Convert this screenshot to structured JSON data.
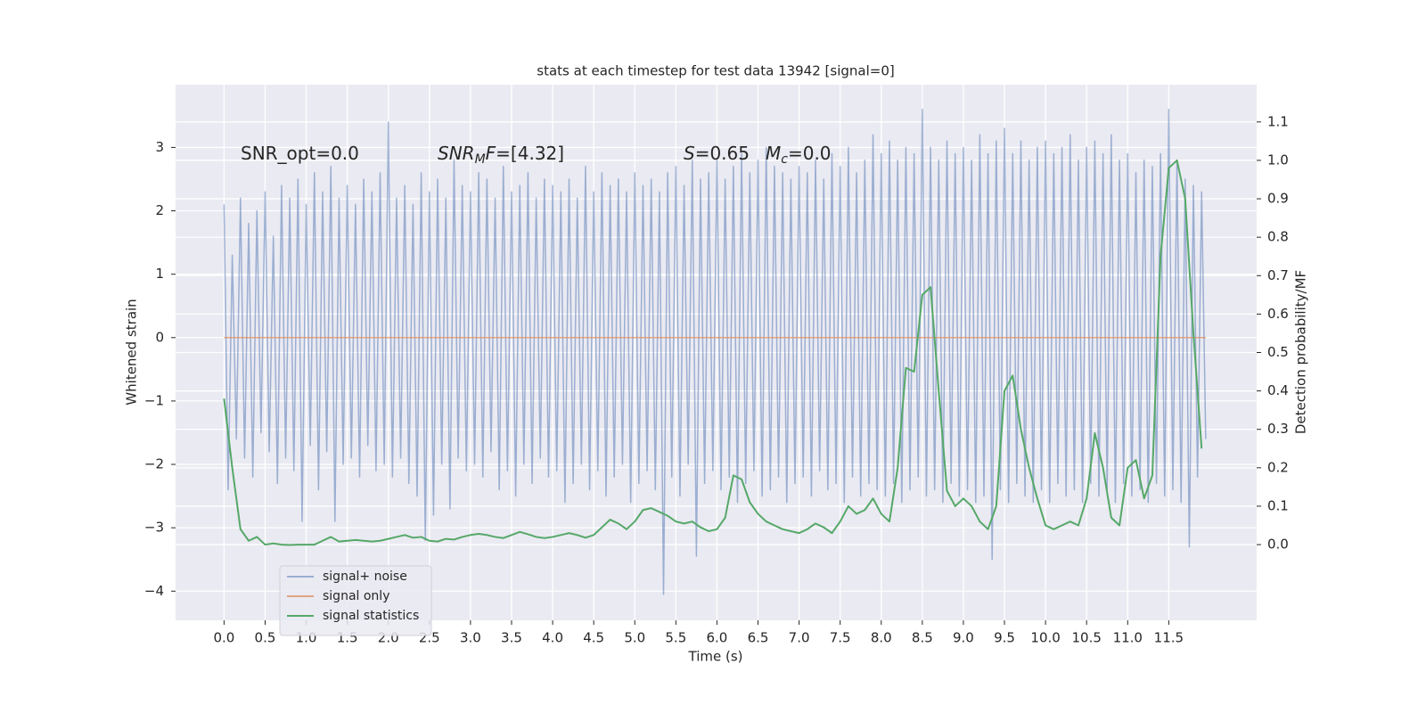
{
  "chart_data": {
    "type": "line",
    "title": "stats at each timestep for test data 13942 [signal=0]",
    "x_label": "Time (s)",
    "y_label": "Whitened strain",
    "y2_label": "Detection probability/MF",
    "xlim": [
      -0.59,
      12.57
    ],
    "ylim": [
      -4.46,
      3.99
    ],
    "y2lim": [
      -0.197,
      1.197
    ],
    "xticks": [
      {
        "value": 0,
        "label": "0.0"
      },
      0.5,
      {
        "value": 1,
        "label": "1.0"
      },
      1.5,
      {
        "value": 2,
        "label": "2.0"
      },
      2.5,
      {
        "value": 3,
        "label": "3.0"
      },
      3.5,
      {
        "value": 4,
        "label": "4.0"
      },
      4.5,
      {
        "value": 5,
        "label": "5.0"
      },
      5.5,
      {
        "value": 6,
        "label": "6.0"
      },
      6.5,
      {
        "value": 7,
        "label": "7.0"
      },
      7.5,
      {
        "value": 8,
        "label": "8.0"
      },
      8.5,
      {
        "value": 9,
        "label": "9.0"
      },
      9.5,
      {
        "value": 10,
        "label": "10.0"
      },
      10.5,
      {
        "value": 11,
        "label": "11.0"
      },
      11.5
    ],
    "yticks": [
      {
        "value": -4,
        "label": "−4"
      },
      {
        "value": -3,
        "label": "−3"
      },
      {
        "value": -2,
        "label": "−2"
      },
      {
        "value": -1,
        "label": "−1"
      },
      0,
      1,
      2,
      3
    ],
    "y2ticks": [
      {
        "value": 0,
        "label": "0.0"
      },
      0.1,
      0.2,
      0.3,
      0.4,
      0.5,
      0.6,
      0.7,
      0.8,
      0.9,
      {
        "value": 1,
        "label": "1.0"
      },
      1.1
    ],
    "grid": true,
    "legend": "lower left",
    "annotations": [
      {
        "parts": [
          {
            "text": "SNR_opt=0.0"
          }
        ]
      },
      {
        "parts": [
          {
            "text": "SNR",
            "italic": true
          },
          {
            "text": "M",
            "italic": true,
            "sub": true
          },
          {
            "text": "F",
            "italic": true
          },
          {
            "text": "=[4.32]"
          }
        ]
      },
      {
        "parts": [
          {
            "text": "S",
            "italic": true
          },
          {
            "text": "=0.65"
          }
        ]
      },
      {
        "parts": [
          {
            "text": "M",
            "italic": true
          },
          {
            "text": "c",
            "italic": true,
            "sub": true
          },
          {
            "text": "=0.0"
          }
        ]
      }
    ],
    "series": [
      {
        "name": "signal+ noise",
        "color": "#4c72b0",
        "opacity": 0.5,
        "x": [
          0,
          0.05,
          0.1,
          0.15,
          0.2,
          0.25,
          0.3,
          0.35,
          0.4,
          0.45,
          0.5,
          0.55,
          0.6,
          0.65,
          0.7,
          0.75,
          0.8,
          0.85,
          0.9,
          0.95,
          1,
          1.05,
          1.1,
          1.15,
          1.2,
          1.25,
          1.3,
          1.35,
          1.4,
          1.45,
          1.5,
          1.55,
          1.6,
          1.65,
          1.7,
          1.75,
          1.8,
          1.85,
          1.9,
          1.95,
          2,
          2.05,
          2.1,
          2.15,
          2.2,
          2.25,
          2.3,
          2.35,
          2.4,
          2.45,
          2.5,
          2.55,
          2.6,
          2.65,
          2.7,
          2.75,
          2.8,
          2.85,
          2.9,
          2.95,
          3,
          3.05,
          3.1,
          3.15,
          3.2,
          3.25,
          3.3,
          3.35,
          3.4,
          3.45,
          3.5,
          3.55,
          3.6,
          3.65,
          3.7,
          3.75,
          3.8,
          3.85,
          3.9,
          3.95,
          4,
          4.05,
          4.1,
          4.15,
          4.2,
          4.25,
          4.3,
          4.35,
          4.4,
          4.45,
          4.5,
          4.55,
          4.6,
          4.65,
          4.7,
          4.75,
          4.8,
          4.85,
          4.9,
          4.95,
          5,
          5.05,
          5.1,
          5.15,
          5.2,
          5.25,
          5.3,
          5.35,
          5.4,
          5.45,
          5.5,
          5.55,
          5.6,
          5.65,
          5.7,
          5.75,
          5.8,
          5.85,
          5.9,
          5.95,
          6,
          6.05,
          6.1,
          6.15,
          6.2,
          6.25,
          6.3,
          6.35,
          6.4,
          6.45,
          6.5,
          6.55,
          6.6,
          6.65,
          6.7,
          6.75,
          6.8,
          6.85,
          6.9,
          6.95,
          7,
          7.05,
          7.1,
          7.15,
          7.2,
          7.25,
          7.3,
          7.35,
          7.4,
          7.45,
          7.5,
          7.55,
          7.6,
          7.65,
          7.7,
          7.75,
          7.8,
          7.85,
          7.9,
          7.95,
          8,
          8.05,
          8.1,
          8.15,
          8.2,
          8.25,
          8.3,
          8.35,
          8.4,
          8.45,
          8.5,
          8.55,
          8.6,
          8.65,
          8.7,
          8.75,
          8.8,
          8.85,
          8.9,
          8.95,
          9,
          9.05,
          9.1,
          9.15,
          9.2,
          9.25,
          9.3,
          9.35,
          9.4,
          9.45,
          9.5,
          9.55,
          9.6,
          9.65,
          9.7,
          9.75,
          9.8,
          9.85,
          9.9,
          9.95,
          10,
          10.05,
          10.1,
          10.15,
          10.2,
          10.25,
          10.3,
          10.35,
          10.4,
          10.45,
          10.5,
          10.55,
          10.6,
          10.65,
          10.7,
          10.75,
          10.8,
          10.85,
          10.9,
          10.95,
          11,
          11.05,
          11.1,
          11.15,
          11.2,
          11.25,
          11.3,
          11.35,
          11.4,
          11.45,
          11.5,
          11.55,
          11.6,
          11.65,
          11.7,
          11.75,
          11.8,
          11.85,
          11.9,
          11.95
        ],
        "values": [
          2.1,
          -2.4,
          1.3,
          -1.6,
          2.2,
          -1.9,
          1.8,
          -2.2,
          2.0,
          -1.5,
          2.3,
          -1.8,
          1.6,
          -2.3,
          2.4,
          -1.9,
          2.2,
          -2.1,
          2.5,
          -2.9,
          2.1,
          -1.7,
          2.6,
          -2.4,
          2.3,
          -1.8,
          2.7,
          -2.9,
          2.2,
          -2.0,
          2.4,
          -1.9,
          2.1,
          -2.2,
          2.5,
          -1.7,
          2.3,
          -2.1,
          2.6,
          -2.0,
          3.4,
          -2.2,
          2.2,
          -1.9,
          2.4,
          -2.3,
          2.1,
          -2.5,
          2.6,
          -3.2,
          2.3,
          -2.8,
          2.5,
          -2.0,
          2.2,
          -2.7,
          2.8,
          -1.9,
          2.4,
          -2.1,
          2.3,
          -2.0,
          2.6,
          -2.2,
          2.5,
          -1.8,
          2.2,
          -2.4,
          2.7,
          -2.1,
          2.3,
          -2.5,
          2.4,
          -2.0,
          2.6,
          -2.3,
          2.2,
          -1.9,
          2.5,
          -2.2,
          2.4,
          -2.1,
          2.3,
          -2.6,
          2.5,
          -2.3,
          2.2,
          -2.0,
          2.7,
          -2.4,
          2.3,
          -2.1,
          2.6,
          -2.5,
          2.4,
          -2.2,
          2.5,
          -2.0,
          2.3,
          -2.6,
          2.6,
          -2.3,
          2.4,
          -2.1,
          2.5,
          -2.4,
          2.3,
          -4.05,
          2.6,
          -2.2,
          2.7,
          -2.5,
          2.4,
          -2.0,
          2.8,
          -3.45,
          2.5,
          -2.3,
          2.6,
          -2.1,
          2.8,
          -2.4,
          2.5,
          -2.2,
          2.7,
          -2.6,
          2.9,
          -2.3,
          2.6,
          -2.1,
          2.8,
          -2.5,
          3.0,
          -2.4,
          2.7,
          -2.2,
          2.6,
          -2.6,
          2.5,
          -2.3,
          2.7,
          -2.2,
          2.6,
          -2.5,
          2.8,
          -2.1,
          2.5,
          -2.4,
          2.9,
          -2.3,
          2.7,
          -2.6,
          3.0,
          -2.2,
          2.6,
          -2.5,
          2.8,
          -2.3,
          3.2,
          -2.4,
          2.9,
          -2.5,
          3.1,
          -2.3,
          2.8,
          -2.6,
          3.0,
          -2.4,
          2.9,
          -2.2,
          3.6,
          -2.5,
          3.0,
          -2.4,
          2.8,
          -2.6,
          3.1,
          -2.3,
          2.9,
          -2.5,
          3.0,
          -2.4,
          2.8,
          -2.6,
          3.2,
          -2.5,
          2.9,
          -3.5,
          3.1,
          -2.4,
          3.3,
          -2.6,
          2.9,
          -2.3,
          3.1,
          -2.5,
          2.8,
          -2.6,
          3.0,
          -2.4,
          3.1,
          -2.6,
          2.9,
          -2.3,
          3.0,
          -2.5,
          3.2,
          -2.4,
          2.8,
          -2.6,
          3.0,
          -2.3,
          3.1,
          -2.5,
          2.9,
          -2.4,
          3.2,
          -2.6,
          2.8,
          -2.3,
          2.9,
          -2.5,
          2.6,
          -2.4,
          2.8,
          -2.6,
          2.7,
          -2.3,
          2.9,
          -2.5,
          3.6,
          -2.4,
          2.8,
          -2.6,
          2.5,
          -3.3,
          2.4,
          -2.2,
          2.3,
          -1.6
        ]
      },
      {
        "name": "signal only",
        "color": "#dd8452",
        "opacity": 0.7,
        "x": [
          0,
          11.95
        ],
        "values": [
          0,
          0
        ]
      },
      {
        "name": "signal statistics",
        "color": "#55a868",
        "axis": "y2",
        "x": [
          0,
          0.1,
          0.2,
          0.3,
          0.4,
          0.5,
          0.6,
          0.7,
          0.8,
          0.9,
          1,
          1.1,
          1.2,
          1.3,
          1.4,
          1.5,
          1.6,
          1.7,
          1.8,
          1.9,
          2,
          2.1,
          2.2,
          2.3,
          2.4,
          2.5,
          2.6,
          2.7,
          2.8,
          2.9,
          3,
          3.1,
          3.2,
          3.3,
          3.4,
          3.5,
          3.6,
          3.7,
          3.8,
          3.9,
          4,
          4.1,
          4.2,
          4.3,
          4.4,
          4.5,
          4.6,
          4.7,
          4.8,
          4.9,
          5,
          5.1,
          5.2,
          5.3,
          5.4,
          5.5,
          5.6,
          5.7,
          5.8,
          5.9,
          6,
          6.1,
          6.2,
          6.3,
          6.4,
          6.5,
          6.6,
          6.7,
          6.8,
          6.9,
          7,
          7.1,
          7.2,
          7.3,
          7.4,
          7.5,
          7.6,
          7.7,
          7.8,
          7.9,
          8,
          8.1,
          8.2,
          8.3,
          8.4,
          8.5,
          8.6,
          8.7,
          8.8,
          8.9,
          9,
          9.1,
          9.2,
          9.3,
          9.4,
          9.5,
          9.6,
          9.7,
          9.8,
          9.9,
          10,
          10.1,
          10.2,
          10.3,
          10.4,
          10.5,
          10.6,
          10.7,
          10.8,
          10.9,
          11,
          11.1,
          11.2,
          11.3,
          11.4,
          11.5,
          11.6,
          11.7,
          11.8,
          11.9
        ],
        "values": [
          0.38,
          0.2,
          0.04,
          0.01,
          0.02,
          0.0,
          0.003,
          0.0,
          -0.001,
          0.0,
          0.0,
          0.0,
          0.01,
          0.02,
          0.008,
          0.01,
          0.012,
          0.01,
          0.008,
          0.01,
          0.015,
          0.02,
          0.025,
          0.018,
          0.02,
          0.01,
          0.008,
          0.015,
          0.013,
          0.02,
          0.025,
          0.028,
          0.025,
          0.02,
          0.017,
          0.025,
          0.033,
          0.027,
          0.02,
          0.017,
          0.02,
          0.025,
          0.03,
          0.025,
          0.018,
          0.025,
          0.045,
          0.065,
          0.055,
          0.04,
          0.06,
          0.09,
          0.095,
          0.085,
          0.075,
          0.06,
          0.055,
          0.06,
          0.045,
          0.035,
          0.04,
          0.07,
          0.18,
          0.17,
          0.11,
          0.08,
          0.06,
          0.05,
          0.04,
          0.035,
          0.03,
          0.04,
          0.055,
          0.045,
          0.03,
          0.06,
          0.1,
          0.08,
          0.09,
          0.12,
          0.08,
          0.06,
          0.2,
          0.46,
          0.45,
          0.65,
          0.67,
          0.4,
          0.14,
          0.1,
          0.12,
          0.1,
          0.06,
          0.04,
          0.1,
          0.4,
          0.44,
          0.3,
          0.2,
          0.12,
          0.05,
          0.04,
          0.05,
          0.06,
          0.05,
          0.12,
          0.29,
          0.2,
          0.07,
          0.05,
          0.2,
          0.22,
          0.12,
          0.18,
          0.75,
          0.98,
          1.0,
          0.9,
          0.55,
          0.25
        ]
      }
    ]
  }
}
